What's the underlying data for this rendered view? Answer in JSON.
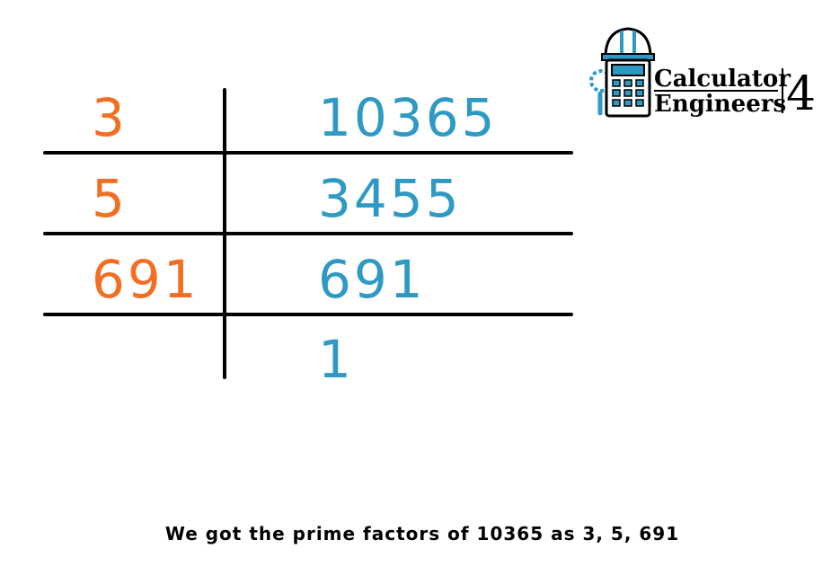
{
  "brand": {
    "line1": "Calculator",
    "line2": "Engineers",
    "number": "4"
  },
  "rows": [
    {
      "divisor": "3",
      "value": "10365"
    },
    {
      "divisor": "5",
      "value": "3455"
    },
    {
      "divisor": "691",
      "value": "691"
    },
    {
      "divisor": "",
      "value": "1"
    }
  ],
  "caption": "We got the prime factors of 10365 as 3, 5, 691",
  "colors": {
    "divisor": "#f26f21",
    "value": "#2e9ac4",
    "logo_blue": "#2e9ac4"
  }
}
